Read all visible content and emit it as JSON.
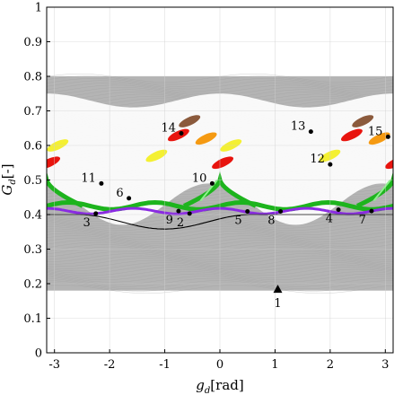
{
  "chart_data": {
    "type": "scatter",
    "xlabel_main": "g",
    "xlabel_sub": "d",
    "xlabel_unit": "[rad]",
    "ylabel_main": "G",
    "ylabel_sub": "d",
    "ylabel_unit": "[-]",
    "xlim": [
      -3.14159,
      3.14159
    ],
    "ylim": [
      0,
      1
    ],
    "x_ticks": [
      -3,
      -2,
      -1,
      0,
      1,
      2,
      3
    ],
    "x_tick_labels": [
      "-3",
      "-2",
      "-1",
      "0",
      "1",
      "2",
      "3"
    ],
    "y_ticks": [
      0,
      0.1,
      0.2,
      0.3,
      0.4,
      0.5,
      0.6,
      0.7,
      0.8,
      0.9,
      1
    ],
    "y_tick_labels": [
      "0",
      "0.1",
      "0.2",
      "0.3",
      "0.4",
      "0.5",
      "0.6",
      "0.7",
      "0.8",
      "0.9",
      "1"
    ],
    "grid": true,
    "background_region": {
      "description": "gray Poincare section orbits",
      "color": "#b4b4b4",
      "G_lower": 0.18,
      "G_upper": 0.8
    },
    "chaotic_region": {
      "G_lower": 0.43,
      "G_upper": 0.73,
      "color": "#ffffff"
    },
    "points": [
      {
        "label": "1",
        "x": 1.05,
        "y": 0.184,
        "marker": "triangle"
      },
      {
        "label": "2",
        "x": -0.55,
        "y": 0.403,
        "marker": "dot"
      },
      {
        "label": "3",
        "x": -2.25,
        "y": 0.403,
        "marker": "dot"
      },
      {
        "label": "4",
        "x": 2.15,
        "y": 0.414,
        "marker": "dot"
      },
      {
        "label": "5",
        "x": 0.5,
        "y": 0.409,
        "marker": "dot"
      },
      {
        "label": "6",
        "x": -1.65,
        "y": 0.447,
        "marker": "dot"
      },
      {
        "label": "7",
        "x": 2.75,
        "y": 0.41,
        "marker": "dot"
      },
      {
        "label": "8",
        "x": 1.1,
        "y": 0.409,
        "marker": "dot"
      },
      {
        "label": "9",
        "x": -0.75,
        "y": 0.41,
        "marker": "dot"
      },
      {
        "label": "10",
        "x": -0.14,
        "y": 0.49,
        "marker": "dot"
      },
      {
        "label": "11",
        "x": -2.15,
        "y": 0.49,
        "marker": "dot"
      },
      {
        "label": "12",
        "x": 2.0,
        "y": 0.545,
        "marker": "dot"
      },
      {
        "label": "13",
        "x": 1.65,
        "y": 0.64,
        "marker": "dot"
      },
      {
        "label": "14",
        "x": -0.7,
        "y": 0.635,
        "marker": "dot"
      },
      {
        "label": "15",
        "x": 3.05,
        "y": 0.625,
        "marker": "dot"
      }
    ],
    "colors": {
      "red": "#e8140e",
      "orange": "#f59a12",
      "yellow": "#f4f032",
      "green": "#1db41d",
      "light_green": "#8df08d",
      "purple": "#8a2be2",
      "brown": "#8b5a3c",
      "black": "#000000"
    }
  }
}
